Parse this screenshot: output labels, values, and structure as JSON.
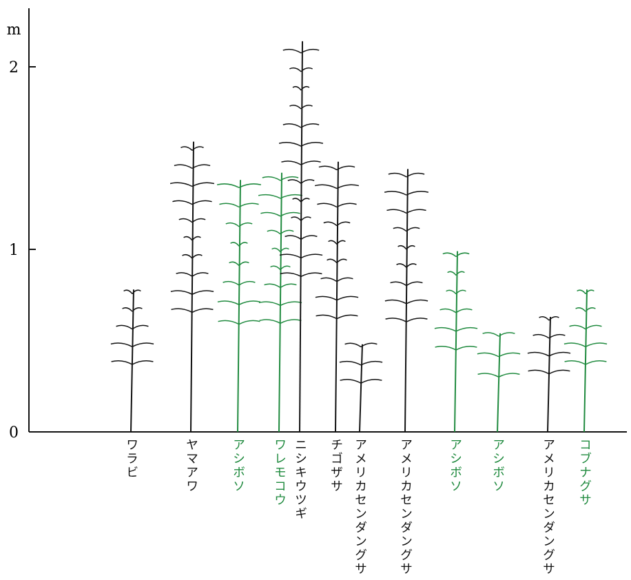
{
  "axis": {
    "unit": "m",
    "ticks": [
      0,
      1,
      2
    ]
  },
  "plants": [
    {
      "label": "ワラビ",
      "height": 0.78,
      "color": "#111111"
    },
    {
      "label": "ヤマアワ",
      "height": 1.59,
      "color": "#111111"
    },
    {
      "label": "アシボソ",
      "height": 1.38,
      "color": "#1f8a3e"
    },
    {
      "label": "ワレモコウ",
      "height": 1.42,
      "color": "#1f8a3e"
    },
    {
      "label": "ニシキウツギ",
      "height": 2.14,
      "color": "#111111"
    },
    {
      "label": "チゴザサ",
      "height": 1.48,
      "color": "#111111"
    },
    {
      "label": "アメリカセンダングサ",
      "height": 0.48,
      "color": "#111111"
    },
    {
      "label": "アメリカセンダングサ",
      "height": 1.44,
      "color": "#111111"
    },
    {
      "label": "アシボソ",
      "height": 0.99,
      "color": "#1f8a3e"
    },
    {
      "label": "アシボソ",
      "height": 0.54,
      "color": "#1f8a3e"
    },
    {
      "label": "アメリカセンダングサ",
      "height": 0.63,
      "color": "#111111"
    },
    {
      "label": "コブナグサ",
      "height": 0.78,
      "color": "#1f8a3e"
    }
  ]
}
